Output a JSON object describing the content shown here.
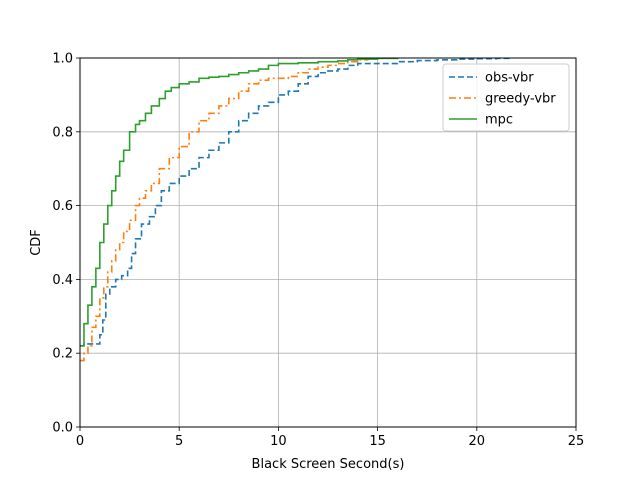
{
  "chart_data": {
    "type": "line",
    "title": "",
    "xlabel": "Black Screen Second(s)",
    "ylabel": "CDF",
    "xlim": [
      0,
      25
    ],
    "ylim": [
      0,
      1
    ],
    "xticks": [
      0,
      5,
      10,
      15,
      20,
      25
    ],
    "xtick_labels": [
      "0",
      "5",
      "10",
      "15",
      "20",
      "25"
    ],
    "yticks": [
      0,
      0.2,
      0.4,
      0.6,
      0.8,
      1.0
    ],
    "ytick_labels": [
      "0.0",
      "0.2",
      "0.4",
      "0.6",
      "0.8",
      "1.0"
    ],
    "grid": true,
    "legend_position": "top-right",
    "series": [
      {
        "name": "obs-vbr",
        "color": "#1f77b4",
        "dash": "dashed",
        "x": [
          0,
          0.2,
          0.5,
          0.9,
          1.0,
          1.15,
          1.3,
          1.5,
          1.8,
          2.1,
          2.4,
          2.6,
          2.8,
          3.1,
          3.5,
          3.8,
          4.1,
          4.5,
          5.0,
          5.5,
          6.0,
          6.5,
          7.0,
          7.5,
          8.0,
          8.5,
          9.0,
          9.5,
          10.0,
          10.5,
          11.0,
          11.5,
          12.0,
          12.5,
          13.0,
          13.5,
          14.0,
          14.5,
          15.0,
          16.0,
          17.0,
          18.0,
          19.0,
          20.0,
          21.0,
          21.8
        ],
        "y": [
          0.22,
          0.225,
          0.225,
          0.225,
          0.25,
          0.29,
          0.36,
          0.38,
          0.4,
          0.41,
          0.43,
          0.47,
          0.51,
          0.55,
          0.57,
          0.6,
          0.64,
          0.66,
          0.68,
          0.7,
          0.73,
          0.75,
          0.77,
          0.8,
          0.83,
          0.85,
          0.87,
          0.88,
          0.9,
          0.91,
          0.93,
          0.95,
          0.96,
          0.965,
          0.97,
          0.98,
          0.985,
          0.985,
          0.985,
          0.99,
          0.993,
          0.995,
          0.997,
          0.998,
          0.999,
          1.0
        ]
      },
      {
        "name": "greedy-vbr",
        "color": "#ff7f0e",
        "dash": "dashdot",
        "x": [
          0,
          0.2,
          0.4,
          0.6,
          0.8,
          1.0,
          1.2,
          1.4,
          1.6,
          1.8,
          2.0,
          2.2,
          2.5,
          2.8,
          3.0,
          3.3,
          3.6,
          4.0,
          4.5,
          5.0,
          5.5,
          6.0,
          6.5,
          7.0,
          7.5,
          8.0,
          8.5,
          9.0,
          9.5,
          10.0,
          10.5,
          11.0,
          11.5,
          12.0,
          12.5,
          13.0,
          13.5,
          14.0,
          14.5,
          15.0,
          16.0
        ],
        "y": [
          0.18,
          0.2,
          0.22,
          0.27,
          0.3,
          0.35,
          0.38,
          0.42,
          0.45,
          0.48,
          0.5,
          0.53,
          0.56,
          0.6,
          0.62,
          0.64,
          0.66,
          0.7,
          0.73,
          0.76,
          0.8,
          0.83,
          0.85,
          0.87,
          0.89,
          0.91,
          0.93,
          0.94,
          0.945,
          0.945,
          0.95,
          0.96,
          0.97,
          0.975,
          0.98,
          0.985,
          0.99,
          0.995,
          0.997,
          0.999,
          1.0
        ]
      },
      {
        "name": "mpc",
        "color": "#2ca02c",
        "dash": "solid",
        "x": [
          0,
          0.2,
          0.4,
          0.6,
          0.8,
          1.0,
          1.2,
          1.4,
          1.6,
          1.8,
          2.0,
          2.2,
          2.5,
          2.8,
          3.0,
          3.3,
          3.6,
          4.0,
          4.3,
          4.6,
          5.0,
          5.5,
          6.0,
          6.5,
          7.0,
          7.5,
          8.0,
          8.5,
          9.0,
          9.5,
          10.0,
          11.0,
          12.0,
          13.0,
          13.5,
          14.0,
          15.0,
          16.0
        ],
        "y": [
          0.22,
          0.28,
          0.33,
          0.38,
          0.43,
          0.5,
          0.55,
          0.6,
          0.64,
          0.68,
          0.72,
          0.75,
          0.8,
          0.82,
          0.83,
          0.85,
          0.87,
          0.89,
          0.91,
          0.92,
          0.93,
          0.935,
          0.945,
          0.948,
          0.95,
          0.955,
          0.96,
          0.965,
          0.97,
          0.98,
          0.985,
          0.987,
          0.99,
          0.992,
          0.995,
          0.997,
          0.999,
          1.0
        ]
      }
    ]
  }
}
